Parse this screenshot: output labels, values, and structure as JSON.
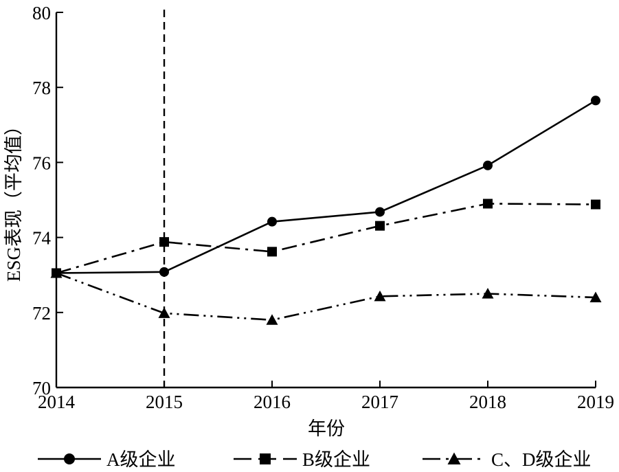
{
  "chart_data": {
    "type": "line",
    "title": "",
    "xlabel": "年份",
    "ylabel": "ESG表现（平均值）",
    "x": [
      2014,
      2015,
      2016,
      2017,
      2018,
      2019
    ],
    "xticks": [
      "2014",
      "2015",
      "2016",
      "2017",
      "2018",
      "2019"
    ],
    "ylim": [
      70,
      80
    ],
    "yticks": [
      "70",
      "72",
      "74",
      "76",
      "78",
      "80"
    ],
    "grid": false,
    "legend_position": "bottom",
    "reference_line_x": 2015,
    "series": [
      {
        "name": "A级企业",
        "marker": "circle",
        "dash": "solid",
        "values": [
          73.05,
          73.08,
          74.42,
          74.68,
          75.92,
          77.65
        ]
      },
      {
        "name": "B级企业",
        "marker": "square",
        "dash": "dashdot",
        "values": [
          73.05,
          73.88,
          73.62,
          74.31,
          74.9,
          74.88
        ]
      },
      {
        "name": "C、D级企业",
        "marker": "triangle",
        "dash": "dashdotdot",
        "values": [
          73.05,
          71.98,
          71.8,
          72.43,
          72.5,
          72.4
        ]
      }
    ]
  }
}
